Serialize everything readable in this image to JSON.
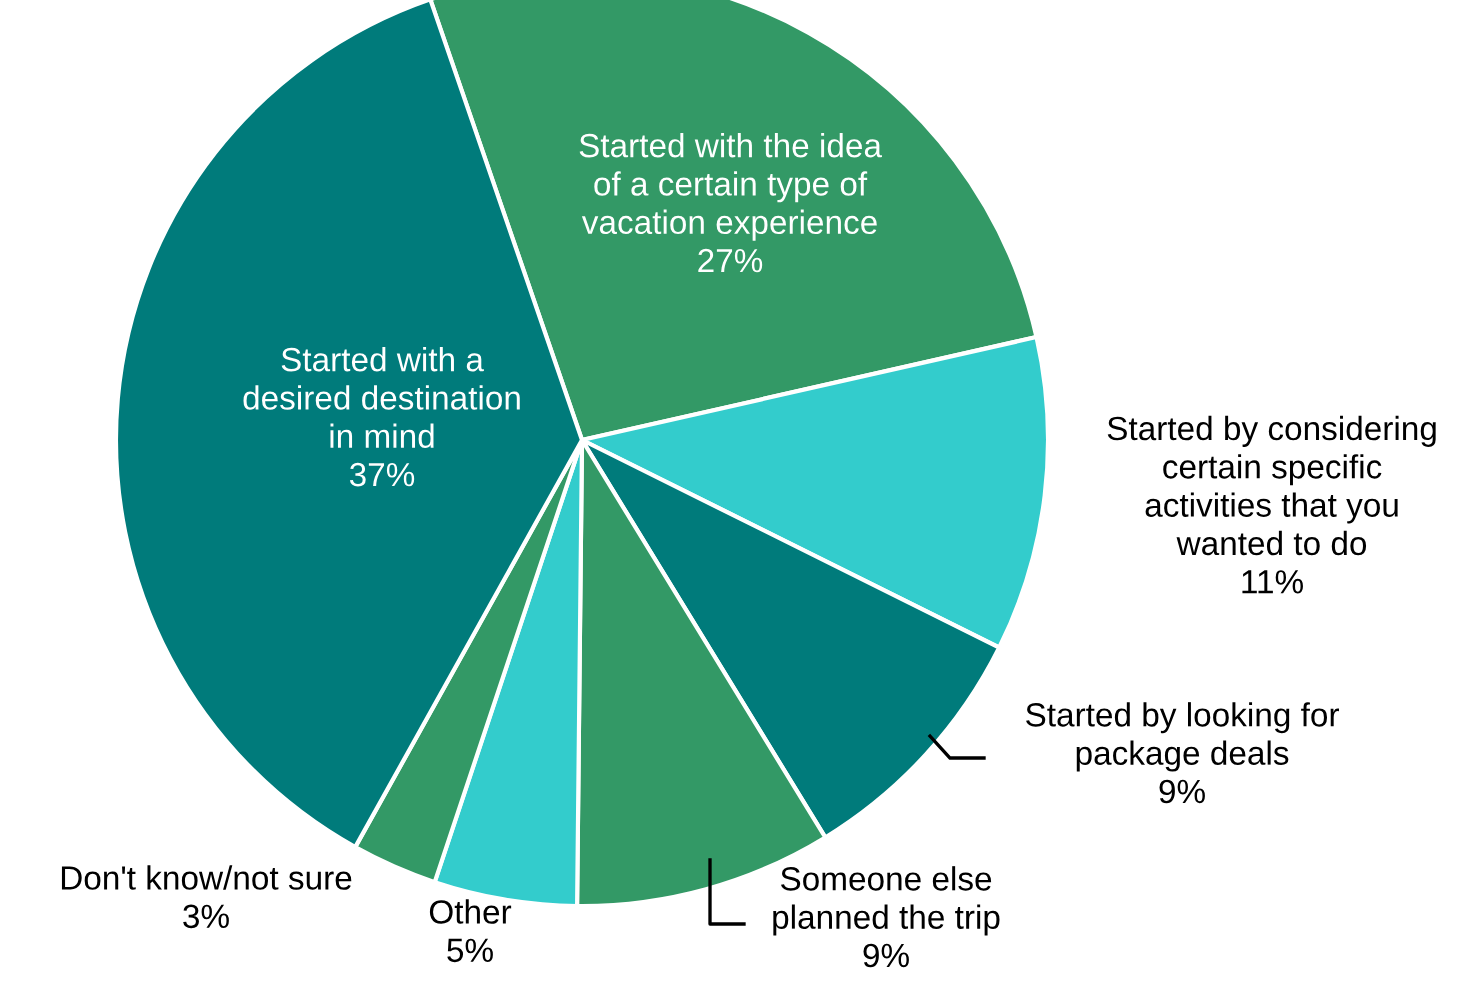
{
  "chart_data": {
    "type": "pie",
    "categories": [
      "Started with the idea\nof a certain type of\nvacation experience",
      "Started by considering\ncertain specific\nactivities that you\nwanted to do",
      "Started by looking for\npackage deals",
      "Someone else\nplanned the trip",
      "Other",
      "Don't know/not sure",
      "Started with a\ndesired destination\nin mind"
    ],
    "values": [
      27,
      11,
      9,
      9,
      5,
      3,
      37
    ],
    "value_labels": [
      "27%",
      "11%",
      "9%",
      "9%",
      "5%",
      "3%",
      "37%"
    ],
    "colors": [
      "#339966",
      "#33cccc",
      "#007b7b",
      "#339966",
      "#33cccc",
      "#339966",
      "#007b7b"
    ],
    "legend": false
  }
}
